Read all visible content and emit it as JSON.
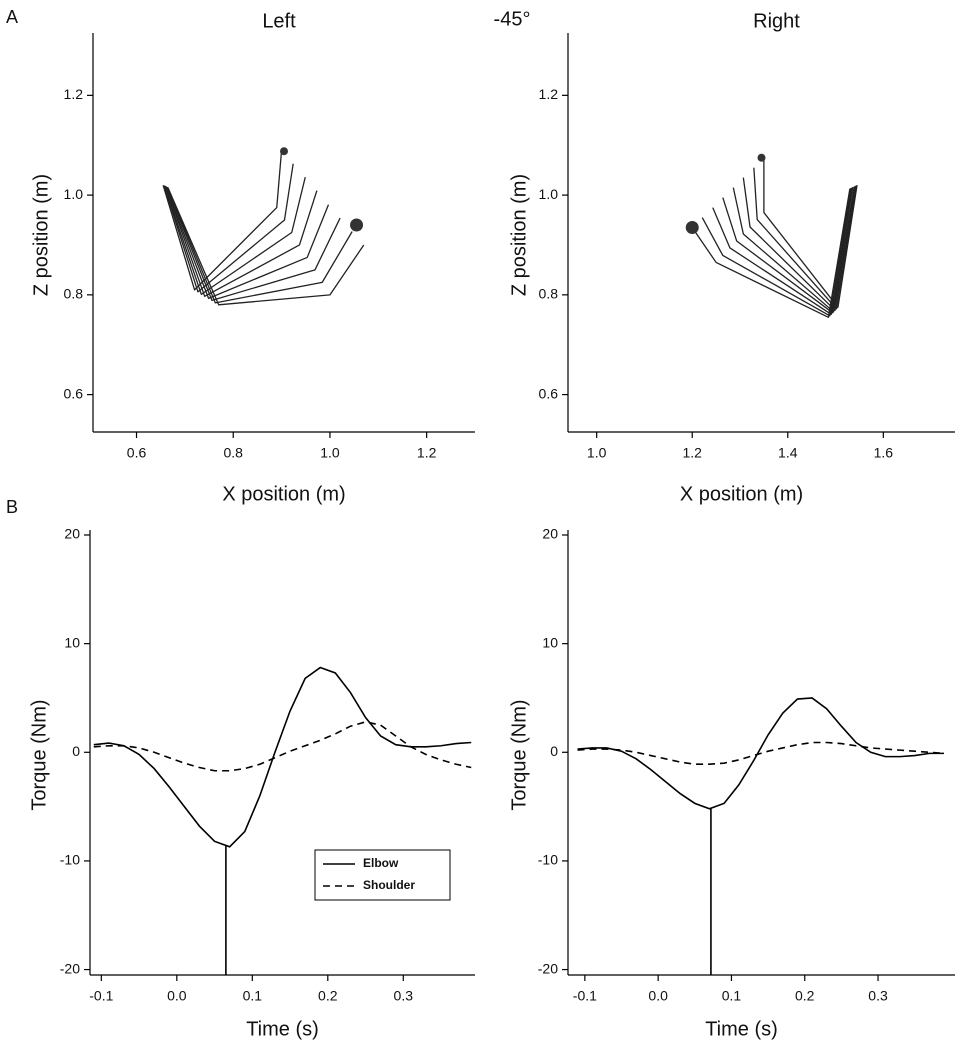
{
  "figure_title": "-45°",
  "panel_labels": [
    "A",
    "B"
  ],
  "chart_data": [
    {
      "type": "stick",
      "title": "Left",
      "xlabel": "X position (m)",
      "ylabel": "Z position (m)",
      "xlim": [
        0.51,
        1.3
      ],
      "ylim": [
        0.525,
        1.315
      ],
      "xticks": [
        0.6,
        0.8,
        {
          "value": 1,
          "label": "1.0"
        },
        1.2
      ],
      "yticks": [
        0.6,
        0.8,
        {
          "value": 1,
          "label": "1.0"
        },
        1.2
      ],
      "color": "#222222",
      "frames": [
        {
          "x": [
            0.655,
            0.72,
            0.89,
            0.9
          ],
          "y": [
            1.02,
            0.81,
            0.975,
            1.09
          ]
        },
        {
          "x": [
            0.657,
            0.727,
            0.906,
            0.924
          ],
          "y": [
            1.019,
            0.806,
            0.95,
            1.063
          ]
        },
        {
          "x": [
            0.658,
            0.734,
            0.921,
            0.949
          ],
          "y": [
            1.019,
            0.801,
            0.925,
            1.036
          ]
        },
        {
          "x": [
            0.66,
            0.741,
            0.937,
            0.973
          ],
          "y": [
            1.018,
            0.797,
            0.9,
            1.009
          ]
        },
        {
          "x": [
            0.661,
            0.749,
            0.953,
            0.997
          ],
          "y": [
            1.017,
            0.793,
            0.875,
            0.981
          ]
        },
        {
          "x": [
            0.663,
            0.756,
            0.969,
            1.021
          ],
          "y": [
            1.016,
            0.789,
            0.85,
            0.954
          ]
        },
        {
          "x": [
            0.664,
            0.763,
            0.984,
            1.046
          ],
          "y": [
            1.016,
            0.784,
            0.825,
            0.927
          ]
        },
        {
          "x": [
            0.665,
            0.77,
            1.0,
            1.07
          ],
          "y": [
            1.015,
            0.78,
            0.8,
            0.9
          ]
        }
      ],
      "points": {
        "x": [
          0.905,
          1.055
        ],
        "y": [
          1.088,
          0.94
        ]
      }
    },
    {
      "type": "stick",
      "title": "Right",
      "xlabel": "X position (m)",
      "ylabel": "Z position (m)",
      "xlim": [
        0.94,
        1.75
      ],
      "ylim": [
        0.525,
        1.315
      ],
      "xticks": [
        {
          "value": 1,
          "label": "1.0"
        },
        1.2,
        1.4,
        1.6
      ],
      "yticks": [
        0.6,
        0.8,
        {
          "value": 1,
          "label": "1.0"
        },
        1.2
      ],
      "color": "#222222",
      "frames": [
        {
          "x": [
            1.545,
            1.505,
            1.35,
            1.35
          ],
          "y": [
            1.02,
            0.775,
            0.965,
            1.075
          ]
        },
        {
          "x": [
            1.543,
            1.502,
            1.336,
            1.329
          ],
          "y": [
            1.019,
            0.772,
            0.951,
            1.055
          ]
        },
        {
          "x": [
            1.541,
            1.499,
            1.321,
            1.307
          ],
          "y": [
            1.018,
            0.769,
            0.936,
            1.035
          ]
        },
        {
          "x": [
            1.539,
            1.496,
            1.307,
            1.286
          ],
          "y": [
            1.017,
            0.766,
            0.922,
            1.015
          ]
        },
        {
          "x": [
            1.536,
            1.494,
            1.293,
            1.264
          ],
          "y": [
            1.016,
            0.764,
            0.908,
            0.995
          ]
        },
        {
          "x": [
            1.534,
            1.491,
            1.279,
            1.243
          ],
          "y": [
            1.015,
            0.761,
            0.894,
            0.975
          ]
        },
        {
          "x": [
            1.532,
            1.488,
            1.264,
            1.221
          ],
          "y": [
            1.014,
            0.758,
            0.879,
            0.955
          ]
        },
        {
          "x": [
            1.53,
            1.485,
            1.25,
            1.2
          ],
          "y": [
            1.013,
            0.755,
            0.865,
            0.935
          ]
        }
      ],
      "points": {
        "x": [
          1.345,
          1.2
        ],
        "y": [
          1.075,
          0.935
        ]
      }
    },
    {
      "type": "line",
      "xlabel": "Time (s)",
      "ylabel": "Torque (Nm)",
      "xlim": [
        -0.115,
        0.395
      ],
      "ylim": [
        -20.5,
        20
      ],
      "xticks": [
        -0.1,
        {
          "value": 0,
          "label": "0.0"
        },
        0.1,
        0.2,
        0.3
      ],
      "yticks": [
        -20,
        -10,
        0,
        10,
        20
      ],
      "x": [
        -0.11,
        -0.09,
        -0.07,
        -0.05,
        -0.03,
        -0.01,
        0.01,
        0.03,
        0.05,
        0.07,
        0.09,
        0.11,
        0.13,
        0.15,
        0.17,
        0.19,
        0.21,
        0.23,
        0.25,
        0.27,
        0.29,
        0.31,
        0.33,
        0.35,
        0.37,
        0.39
      ],
      "series": [
        {
          "name": "Elbow",
          "color": "#000000",
          "dash": false,
          "values": [
            0.7,
            0.85,
            0.6,
            -0.2,
            -1.5,
            -3.2,
            -5.0,
            -6.8,
            -8.2,
            -8.7,
            -7.3,
            -4.0,
            0.0,
            3.8,
            6.8,
            7.8,
            7.3,
            5.5,
            3.2,
            1.5,
            0.7,
            0.5,
            0.5,
            0.6,
            0.8,
            0.9
          ]
        },
        {
          "name": "Shoulder",
          "color": "#000000",
          "dash": true,
          "values": [
            0.5,
            0.6,
            0.6,
            0.4,
            0.0,
            -0.5,
            -1.0,
            -1.4,
            -1.7,
            -1.7,
            -1.5,
            -1.1,
            -0.5,
            0.1,
            0.6,
            1.1,
            1.7,
            2.4,
            2.8,
            2.5,
            1.5,
            0.5,
            -0.2,
            -0.7,
            -1.1,
            -1.4
          ]
        }
      ],
      "x_markers": [
        0.065
      ],
      "legend": "lower right"
    },
    {
      "type": "line",
      "xlabel": "Time (s)",
      "ylabel": "Torque (Nm)",
      "xlim": [
        -0.123,
        0.405
      ],
      "ylim": [
        -20.5,
        20
      ],
      "xticks": [
        -0.1,
        {
          "value": 0,
          "label": "0.0"
        },
        0.1,
        0.2,
        0.3
      ],
      "yticks": [
        -20,
        -10,
        0,
        10,
        20
      ],
      "x": [
        -0.11,
        -0.09,
        -0.07,
        -0.05,
        -0.03,
        -0.01,
        0.01,
        0.03,
        0.05,
        0.07,
        0.09,
        0.11,
        0.13,
        0.15,
        0.17,
        0.19,
        0.21,
        0.23,
        0.25,
        0.27,
        0.29,
        0.31,
        0.33,
        0.35,
        0.37,
        0.39
      ],
      "series": [
        {
          "color": "#000000",
          "dash": false,
          "values": [
            0.3,
            0.4,
            0.4,
            0.1,
            -0.6,
            -1.6,
            -2.7,
            -3.8,
            -4.7,
            -5.2,
            -4.7,
            -3.0,
            -0.8,
            1.6,
            3.6,
            4.9,
            5.0,
            4.0,
            2.4,
            0.9,
            0.0,
            -0.4,
            -0.4,
            -0.3,
            -0.1,
            -0.1
          ]
        },
        {
          "color": "#000000",
          "dash": true,
          "values": [
            0.2,
            0.3,
            0.3,
            0.2,
            0.0,
            -0.3,
            -0.6,
            -0.9,
            -1.1,
            -1.1,
            -1.0,
            -0.7,
            -0.3,
            0.1,
            0.4,
            0.7,
            0.9,
            0.9,
            0.8,
            0.6,
            0.4,
            0.3,
            0.2,
            0.1,
            0.0,
            -0.1
          ]
        }
      ],
      "x_markers": [
        0.072
      ]
    }
  ]
}
